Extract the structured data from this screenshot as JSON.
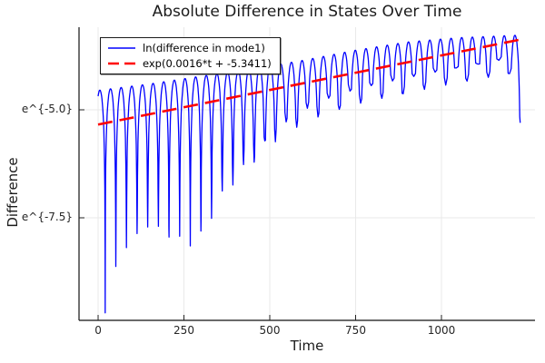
{
  "title": "Absolute Difference in States Over Time",
  "axes": {
    "x": {
      "label": "Time",
      "range": [
        -55.6,
        1272.5
      ],
      "ticks": [
        {
          "v": 0,
          "label": "0"
        },
        {
          "v": 250,
          "label": "250"
        },
        {
          "v": 500,
          "label": "500"
        },
        {
          "v": 750,
          "label": "750"
        },
        {
          "v": 1000,
          "label": "1000"
        }
      ]
    },
    "y": {
      "label": "Difference",
      "scale": "ln",
      "range": [
        -9.874,
        -3.088
      ],
      "ticks": [
        {
          "v": -5.0,
          "label": "e^{-5.0}"
        },
        {
          "v": -7.5,
          "label": "e^{-7.5}"
        }
      ]
    }
  },
  "legend": {
    "entries": [
      {
        "label": "ln(difference in mode1)",
        "color": "#0000ff",
        "style": "solid"
      },
      {
        "label": "exp(0.0016*t + -5.3411)",
        "color": "#ff0000",
        "style": "dashed"
      }
    ]
  },
  "colors": {
    "grid": "#e9e9e9",
    "spine": "#111111",
    "tick_mark": "#222222"
  },
  "chart_data": {
    "type": "line",
    "title": "Absolute Difference in States Over Time",
    "xlabel": "Time",
    "ylabel": "Difference",
    "y_scale": "ln",
    "x_tick_values": [
      0,
      250,
      500,
      750,
      1000
    ],
    "y_tick_values_ln": [
      -5.0,
      -7.5
    ],
    "x_range_shown": [
      -55.6,
      1272.5
    ],
    "y_range_shown_ln": [
      -9.874,
      -3.088
    ],
    "grid": true,
    "legend_position": "top-left-inside",
    "series": [
      {
        "name": "ln(difference in mode1)",
        "color": "#0000ff",
        "style": "solid",
        "model": "log_abs_oscillation",
        "description": "ln|oscillation|: arches of width one half-period with sharp downward needles at zero crossings; needle depth follows dip envelope, arch tops follow peak envelope",
        "t_start": 0,
        "t_end": 1229.5,
        "arch_half_period": 31,
        "phase_t0": -10.5,
        "peak_envelope_log": [
          [
            0,
            -4.55
          ],
          [
            150,
            -4.4
          ],
          [
            300,
            -4.22
          ],
          [
            450,
            -4.05
          ],
          [
            600,
            -3.85
          ],
          [
            750,
            -3.62
          ],
          [
            900,
            -3.43
          ],
          [
            1050,
            -3.33
          ],
          [
            1229,
            -3.27
          ]
        ],
        "dip_envelope_log": [
          [
            21,
            -9.7
          ],
          [
            53,
            -8.6
          ],
          [
            87,
            -8.13
          ],
          [
            119,
            -7.88
          ],
          [
            151,
            -7.67
          ],
          [
            183,
            -7.82
          ],
          [
            217,
            -8.0
          ],
          [
            249,
            -8.07
          ],
          [
            278,
            -8.19
          ],
          [
            312,
            -7.82
          ],
          [
            344,
            -7.29
          ],
          [
            376,
            -6.87
          ],
          [
            410,
            -6.6
          ],
          [
            444,
            -6.3
          ],
          [
            476,
            -6.03
          ],
          [
            513,
            -5.76
          ],
          [
            548,
            -5.55
          ],
          [
            579,
            -5.4
          ],
          [
            614,
            -5.25
          ],
          [
            680,
            -5.04
          ],
          [
            772,
            -4.83
          ],
          [
            905,
            -4.6
          ],
          [
            1037,
            -4.39
          ],
          [
            1169,
            -4.2
          ],
          [
            1229,
            -4.12
          ]
        ],
        "alternate_dip_delta": 0.35,
        "alternate_ramp_t": 700,
        "final_dip": -5.3
      },
      {
        "name": "exp(0.0016*t + -5.3411)",
        "color": "#ff0000",
        "style": "dashed",
        "model": "linear_in_log",
        "slope": 0.0016,
        "intercept": -5.3411,
        "t_start": 0,
        "t_end": 1225
      }
    ]
  }
}
